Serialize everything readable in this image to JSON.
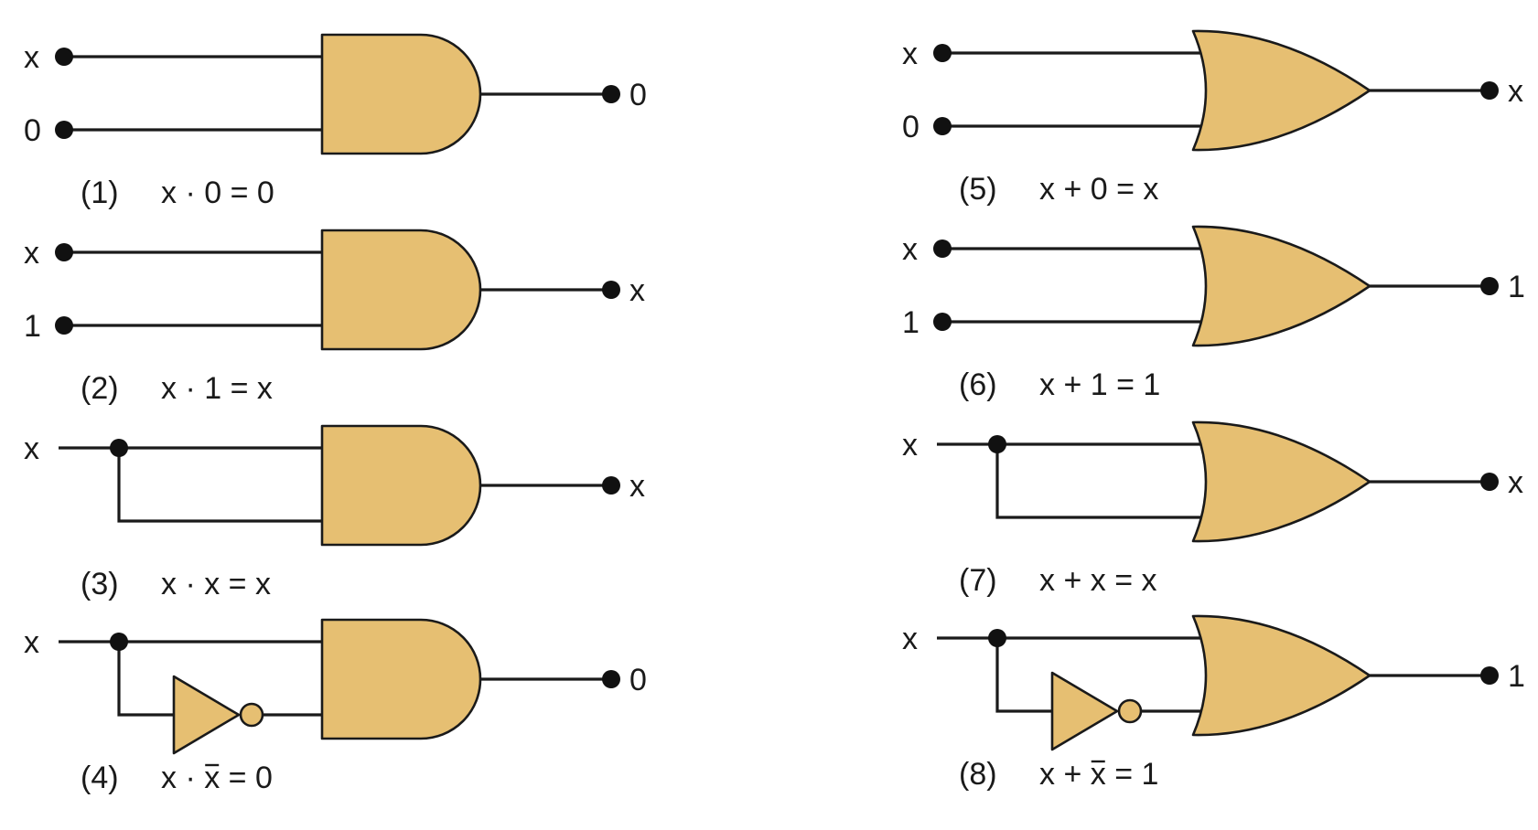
{
  "colors": {
    "gate_fill": "#e6bf72",
    "line": "#1a1a1a",
    "background": "#ffffff"
  },
  "circuits": [
    {
      "gate": "and",
      "mode": "two",
      "in_a": "x",
      "in_b": "0",
      "output": "0",
      "number": "(1)",
      "eq_left": "x · 0",
      "eq_right": "= 0"
    },
    {
      "gate": "and",
      "mode": "two",
      "in_a": "x",
      "in_b": "1",
      "output": "x",
      "number": "(2)",
      "eq_left": "x · 1",
      "eq_right": "= x"
    },
    {
      "gate": "and",
      "mode": "split",
      "in_a": "x",
      "output": "x",
      "number": "(3)",
      "eq_left": "x · x",
      "eq_right": "= x"
    },
    {
      "gate": "and",
      "mode": "split-not",
      "in_a": "x",
      "output": "0",
      "number": "(4)",
      "eq_left": "x · ",
      "eq_bar": "x",
      "eq_right": " = 0"
    },
    {
      "gate": "or",
      "mode": "two",
      "in_a": "x",
      "in_b": "0",
      "output": "x",
      "number": "(5)",
      "eq_left": "x + 0",
      "eq_right": "= x"
    },
    {
      "gate": "or",
      "mode": "two",
      "in_a": "x",
      "in_b": "1",
      "output": "1",
      "number": "(6)",
      "eq_left": "x + 1",
      "eq_right": "= 1"
    },
    {
      "gate": "or",
      "mode": "split",
      "in_a": "x",
      "output": "x",
      "number": "(7)",
      "eq_left": "x + x",
      "eq_right": "= x"
    },
    {
      "gate": "or",
      "mode": "split-not",
      "in_a": "x",
      "output": "1",
      "number": "(8)",
      "eq_left": "x + ",
      "eq_bar": "x",
      "eq_right": " = 1"
    }
  ]
}
